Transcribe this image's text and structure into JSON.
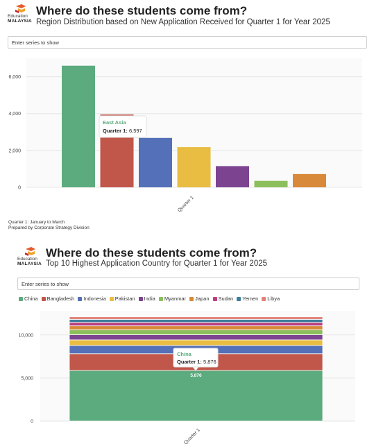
{
  "logo": {
    "line1": "Education",
    "line2": "MALAYSIA"
  },
  "panel1": {
    "title": "Where do these students come from?",
    "subtitle": "Region Distribution based on New Application Received for Quarter 1 for Year 2025",
    "search_placeholder": "Enter series to show",
    "tooltip": {
      "category": "East Asia",
      "label": "Quarter 1:",
      "value": "6,597"
    },
    "notes": [
      "Quarter 1: January to March",
      "Prepared by Corporate Strategy Division"
    ]
  },
  "panel2": {
    "title": "Where do these students come from?",
    "subtitle": "Top 10 Highest Application Country for Quarter 1 for Year 2025",
    "search_placeholder": "Enter series to show",
    "tooltip": {
      "category": "China",
      "label": "Quarter 1:",
      "value": "5,876"
    }
  },
  "chart_data": [
    {
      "type": "bar",
      "categories": [
        "Quarter 1"
      ],
      "series": [
        {
          "name": "East Asia",
          "values": [
            6597
          ],
          "color": "#5bab7f"
        },
        {
          "values": [
            3950
          ],
          "color": "#c0574a"
        },
        {
          "values": [
            2680
          ],
          "color": "#5470b8"
        },
        {
          "values": [
            2180
          ],
          "color": "#e9bd42"
        },
        {
          "values": [
            1150
          ],
          "color": "#7c4391"
        },
        {
          "values": [
            350
          ],
          "color": "#8cbf5c"
        },
        {
          "values": [
            720
          ],
          "color": "#d9893a"
        }
      ],
      "yticks": [
        "0",
        "2,000",
        "4,000",
        "6,000"
      ],
      "ylim": [
        0,
        7000
      ],
      "grid": true
    },
    {
      "type": "bar",
      "stacked": true,
      "categories": [
        "Quarter 1"
      ],
      "series": [
        {
          "name": "China",
          "values": [
            5876
          ],
          "color": "#5bab7f",
          "label": "5,876"
        },
        {
          "name": "Bangladesh",
          "values": [
            1950
          ],
          "color": "#c0574a"
        },
        {
          "name": "Indonesia",
          "values": [
            950
          ],
          "color": "#5470b8"
        },
        {
          "name": "Pakistan",
          "values": [
            650
          ],
          "color": "#e9bd42"
        },
        {
          "name": "India",
          "values": [
            600
          ],
          "color": "#7c4391"
        },
        {
          "name": "Myanmar",
          "values": [
            580
          ],
          "color": "#8cbf5c"
        },
        {
          "name": "Japan",
          "values": [
            450
          ],
          "color": "#d9893a"
        },
        {
          "name": "Sudan",
          "values": [
            400
          ],
          "color": "#b8407e"
        },
        {
          "name": "Yemen",
          "values": [
            350
          ],
          "color": "#3e7f9e"
        },
        {
          "name": "Libya",
          "values": [
            300
          ],
          "color": "#e0837a"
        }
      ],
      "yticks": [
        "0",
        "5,000",
        "10,000"
      ],
      "ylim": [
        0,
        12800
      ],
      "grid": true,
      "legend": "top-left"
    }
  ]
}
